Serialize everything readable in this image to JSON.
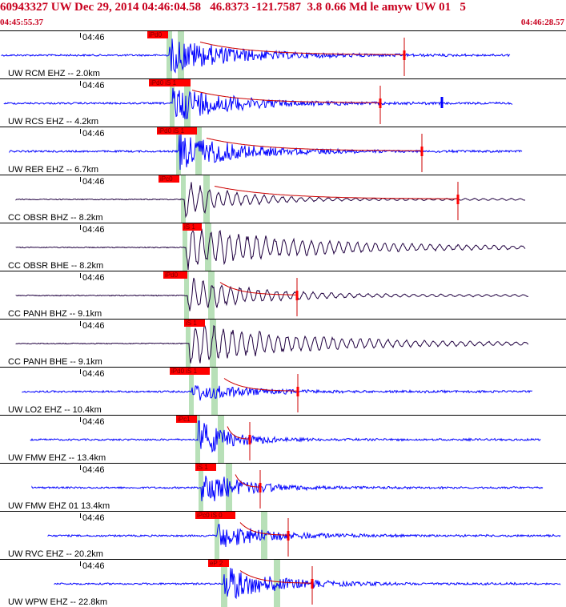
{
  "header": {
    "title": "60943327 UW Dec 29, 2014 04:46:04.58   46.8373 -121.7587  3.8 0.66 Md le amyw UW 01   5",
    "time_start": "04:45:55.37",
    "time_end": "04:46:28.57"
  },
  "colors": {
    "header_text": "#c8001e",
    "trace_blue": "#0000ff",
    "trace_dark": "#200040",
    "pick_red": "#ff0000",
    "window_green": "#b8e0b8",
    "coda_red": "#cc0000"
  },
  "icons": {
    "pick_marker": "red-tick-icon"
  },
  "traces": [
    {
      "station": "UW RCM EHZ -- 2.0km",
      "time_label": "04:46",
      "pick_label": "iPd0",
      "color": "blue"
    },
    {
      "station": "UW RCS EHZ -- 4.2km",
      "time_label": "04:46",
      "pick_label": "iPd0 iS 1",
      "color": "blue"
    },
    {
      "station": "UW RER EHZ -- 6.7km",
      "time_label": "04:46",
      "pick_label": "iPd0 iS 1",
      "color": "blue"
    },
    {
      "station": "CC OBSR BHZ -- 8.2km",
      "time_label": "04:46",
      "pick_label": "iPc0",
      "color": "dark"
    },
    {
      "station": "CC OBSR BHE -- 8.2km",
      "time_label": "04:46",
      "pick_label": "iS 1",
      "color": "dark"
    },
    {
      "station": "CC PANH BHZ -- 9.1km",
      "time_label": "04:46",
      "pick_label": "iPd0",
      "color": "dark"
    },
    {
      "station": "CC PANH BHE -- 9.1km",
      "time_label": "04:46",
      "pick_label": "iS 1",
      "color": "dark"
    },
    {
      "station": "UW LO2 EHZ -- 10.4km",
      "time_label": "04:46",
      "pick_label": "iPd0 iS 1",
      "color": "blue"
    },
    {
      "station": "UW FMW EHZ -- 13.4km",
      "time_label": "04:46",
      "pick_label": "iPc1",
      "color": "blue"
    },
    {
      "station": "UW FMW EHZ 01 13.4km",
      "time_label": "04:46",
      "pick_label": "iS 1",
      "color": "blue"
    },
    {
      "station": "UW RVC EHZ -- 20.2km",
      "time_label": "04:46",
      "pick_label": "iPc0 iS 0",
      "color": "blue"
    },
    {
      "station": "UW WPW EHZ -- 22.8km",
      "time_label": "04:46",
      "pick_label": "eP 2",
      "color": "blue"
    }
  ]
}
